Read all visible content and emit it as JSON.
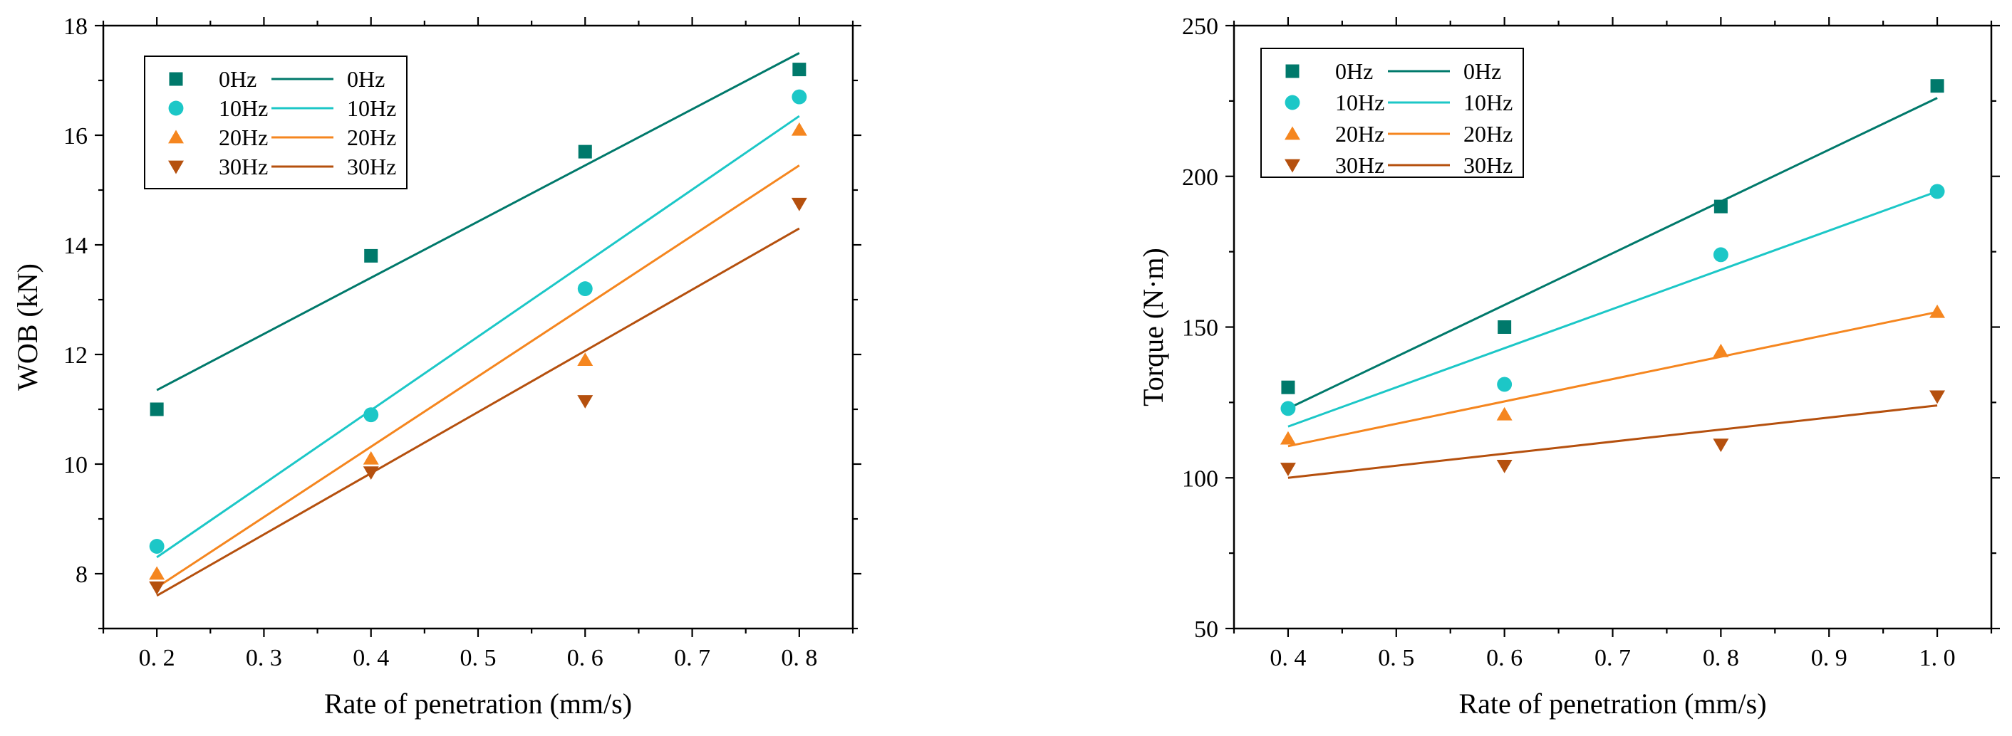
{
  "chart_data": [
    {
      "type": "scatter",
      "title": "",
      "xlabel": "Rate of penetration (mm/s)",
      "ylabel": "WOB (kN)",
      "xlim": [
        0.15,
        0.85
      ],
      "ylim": [
        7,
        18
      ],
      "xticks": [
        0.2,
        0.3,
        0.4,
        0.5,
        0.6,
        0.7,
        0.8
      ],
      "xtick_labels": [
        "0. 2",
        "0. 3",
        "0. 4",
        "0. 5",
        "0. 6",
        "0. 7",
        "0. 8"
      ],
      "yticks": [
        8,
        10,
        12,
        14,
        16,
        18
      ],
      "ytick_labels": [
        "8",
        "10",
        "12",
        "14",
        "16",
        "18"
      ],
      "legend_position": "top-left",
      "series": [
        {
          "name": "0Hz",
          "color": "#00796B",
          "marker": "square",
          "x": [
            0.2,
            0.4,
            0.6,
            0.8
          ],
          "y": [
            11.0,
            13.8,
            15.7,
            17.2
          ],
          "fit": {
            "x": [
              0.2,
              0.8
            ],
            "y": [
              11.35,
              17.5
            ]
          }
        },
        {
          "name": "10Hz",
          "color": "#1CC7C7",
          "marker": "circle",
          "x": [
            0.2,
            0.4,
            0.6,
            0.8
          ],
          "y": [
            8.5,
            10.9,
            13.2,
            16.7
          ],
          "fit": {
            "x": [
              0.2,
              0.8
            ],
            "y": [
              8.3,
              16.35
            ]
          }
        },
        {
          "name": "20Hz",
          "color": "#F5861F",
          "marker": "triangle-up",
          "x": [
            0.2,
            0.4,
            0.6,
            0.8
          ],
          "y": [
            8.0,
            10.1,
            11.9,
            16.1
          ],
          "fit": {
            "x": [
              0.2,
              0.8
            ],
            "y": [
              7.75,
              15.45
            ]
          }
        },
        {
          "name": "30Hz",
          "color": "#B5500E",
          "marker": "triangle-down",
          "x": [
            0.2,
            0.4,
            0.6,
            0.8
          ],
          "y": [
            7.75,
            9.85,
            11.15,
            14.75
          ],
          "fit": {
            "x": [
              0.2,
              0.8
            ],
            "y": [
              7.6,
              14.3
            ]
          }
        }
      ]
    },
    {
      "type": "scatter",
      "title": "",
      "xlabel": "Rate of penetration (mm/s)",
      "ylabel": "Torque (N·m)",
      "xlim": [
        0.35,
        1.05
      ],
      "ylim": [
        50,
        250
      ],
      "xticks": [
        0.4,
        0.5,
        0.6,
        0.7,
        0.8,
        0.9,
        1.0
      ],
      "xtick_labels": [
        "0. 4",
        "0. 5",
        "0. 6",
        "0. 7",
        "0. 8",
        "0. 9",
        "1. 0"
      ],
      "yticks": [
        50,
        100,
        150,
        200,
        250
      ],
      "ytick_labels": [
        "50",
        "100",
        "150",
        "200",
        "250"
      ],
      "legend_position": "top-left",
      "series": [
        {
          "name": "0Hz",
          "color": "#00796B",
          "marker": "square",
          "x": [
            0.4,
            0.6,
            0.8,
            1.0
          ],
          "y": [
            130,
            150,
            190,
            230
          ],
          "fit": {
            "x": [
              0.4,
              1.0
            ],
            "y": [
              123,
              226
            ]
          }
        },
        {
          "name": "10Hz",
          "color": "#1CC7C7",
          "marker": "circle",
          "x": [
            0.4,
            0.6,
            0.8,
            1.0
          ],
          "y": [
            123,
            131,
            174,
            195
          ],
          "fit": {
            "x": [
              0.4,
              1.0
            ],
            "y": [
              117,
              195
            ]
          }
        },
        {
          "name": "20Hz",
          "color": "#F5861F",
          "marker": "triangle-up",
          "x": [
            0.4,
            0.6,
            0.8,
            1.0
          ],
          "y": [
            113,
            121,
            142,
            155
          ],
          "fit": {
            "x": [
              0.4,
              1.0
            ],
            "y": [
              110.5,
              155
            ]
          }
        },
        {
          "name": "30Hz",
          "color": "#B5500E",
          "marker": "triangle-down",
          "x": [
            0.4,
            0.6,
            0.8,
            1.0
          ],
          "y": [
            103,
            104,
            111,
            127
          ],
          "fit": {
            "x": [
              0.4,
              1.0
            ],
            "y": [
              100,
              124
            ]
          }
        }
      ]
    }
  ]
}
